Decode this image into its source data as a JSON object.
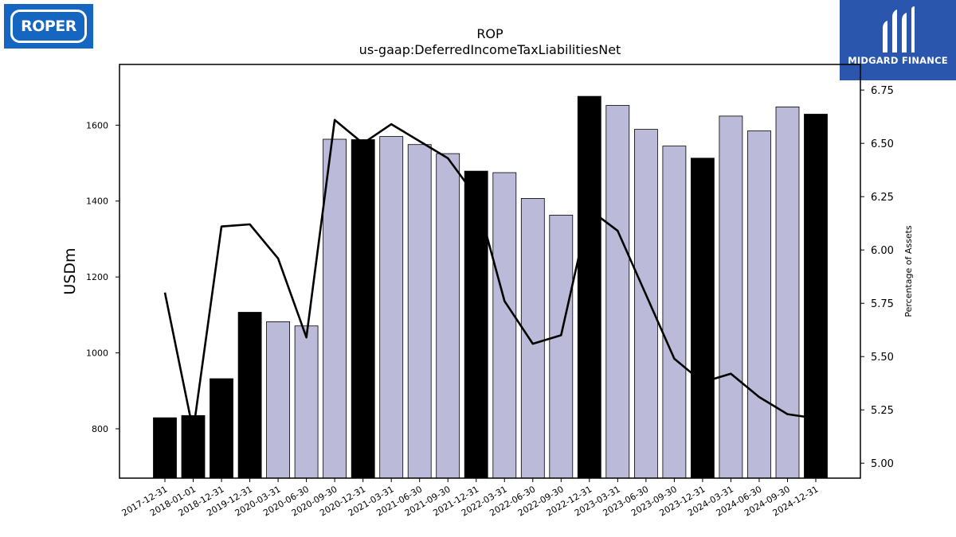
{
  "title": "ROP",
  "subtitle": "us-gaap:DeferredIncomeTaxLiabilitiesNet",
  "logo_left": {
    "text": "ROPER",
    "color": "#1466c0"
  },
  "logo_right": {
    "text": "MIDGARD FINANCE",
    "color": "#2a57ad"
  },
  "chart_data": {
    "type": "bar",
    "title": "ROP",
    "subtitle": "us-gaap:DeferredIncomeTaxLiabilitiesNet",
    "ylabel": "USDm",
    "y2label": "Percentage of Assets",
    "ylim": [
      670,
      1760
    ],
    "y2lim": [
      4.93,
      6.87
    ],
    "yticks": [
      800,
      1000,
      1200,
      1400,
      1600
    ],
    "y2ticks": [
      "5.00",
      "5.25",
      "5.50",
      "5.75",
      "6.00",
      "6.25",
      "6.50",
      "6.75"
    ],
    "categories": [
      "2017-12-31",
      "2018-01-01",
      "2018-12-31",
      "2019-12-31",
      "2020-03-31",
      "2020-06-30",
      "2020-09-30",
      "2020-12-31",
      "2021-03-31",
      "2021-06-30",
      "2021-09-30",
      "2021-12-31",
      "2022-03-31",
      "2022-06-30",
      "2022-09-30",
      "2022-12-31",
      "2023-03-31",
      "2023-06-30",
      "2023-09-30",
      "2023-12-31",
      "2024-03-31",
      "2024-06-30",
      "2024-09-30",
      "2024-12-31"
    ],
    "series": [
      {
        "type": "bar",
        "values": [
          829,
          835,
          932,
          1107,
          1082,
          1071,
          1563,
          1562,
          1570,
          1549,
          1525,
          1479,
          1475,
          1407,
          1363,
          1676,
          1652,
          1589,
          1545,
          1513,
          1624,
          1585,
          1648,
          1629
        ],
        "annual": [
          true,
          true,
          true,
          true,
          false,
          false,
          false,
          true,
          false,
          false,
          false,
          true,
          false,
          false,
          false,
          true,
          false,
          false,
          false,
          true,
          false,
          false,
          false,
          true
        ],
        "annual_color": "#000000",
        "quarter_color": "#bcbad9"
      },
      {
        "type": "line",
        "axis": "right",
        "color": "#000000",
        "values": [
          5.8,
          5.15,
          6.11,
          6.12,
          5.96,
          5.59,
          6.61,
          6.5,
          6.59,
          6.51,
          6.43,
          6.25,
          5.76,
          5.56,
          5.6,
          6.19,
          6.09,
          5.79,
          5.49,
          5.38,
          5.42,
          5.31,
          5.23,
          5.21
        ]
      }
    ]
  }
}
